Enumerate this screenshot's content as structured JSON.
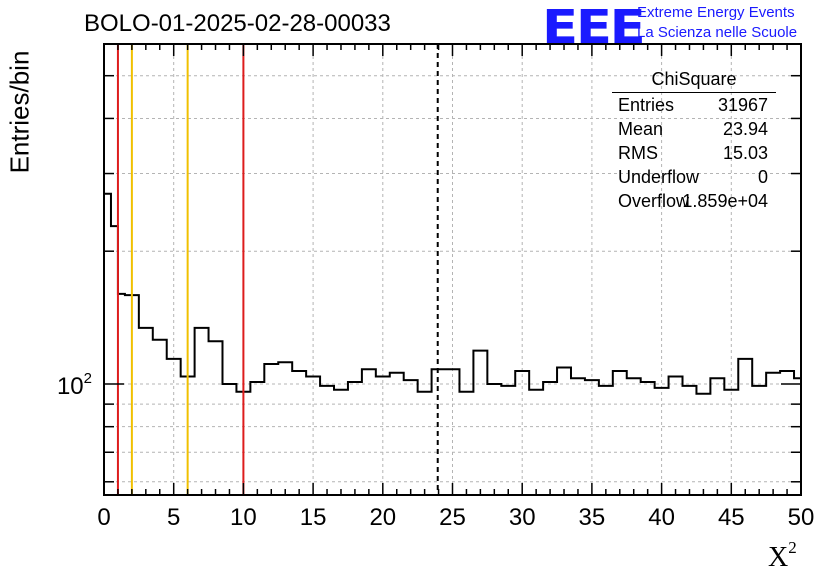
{
  "chart_data": {
    "type": "histogram",
    "title": "BOLO-01-2025-02-28-00033",
    "xlabel": "X",
    "xlabel_superscript": "2",
    "ylabel": "Entries/bin",
    "xlim": [
      0,
      50
    ],
    "ylim": [
      56,
      590
    ],
    "yscale": "log",
    "grid": true,
    "x_ticks": [
      0,
      5,
      10,
      15,
      20,
      25,
      30,
      35,
      40,
      45,
      50
    ],
    "y_ticks": [
      {
        "value": 100,
        "base": "10",
        "exp": "2"
      }
    ],
    "bin_width": 0.5,
    "bin_counts": [
      270,
      228,
      160,
      159,
      159,
      134,
      134,
      126,
      126,
      114,
      114,
      104,
      104,
      134,
      134,
      125,
      125,
      100,
      100,
      96,
      96,
      101,
      101,
      111,
      111,
      112,
      112,
      107,
      107,
      104,
      104,
      99,
      99,
      97,
      97,
      101,
      101,
      108,
      108,
      104,
      104,
      106,
      106,
      102,
      102,
      96,
      96,
      108,
      108,
      108,
      108,
      96,
      96,
      119,
      119,
      100,
      100,
      99,
      99,
      107,
      107,
      97,
      97,
      101,
      101,
      109,
      109,
      103,
      103,
      102,
      102,
      99,
      99,
      107,
      107,
      103,
      103,
      101,
      101,
      98,
      98,
      104,
      104,
      99,
      99,
      95,
      95,
      103,
      103,
      97,
      97,
      114,
      114,
      99,
      99,
      106,
      106,
      107,
      107,
      103
    ],
    "reference_lines": [
      {
        "x": 1.0,
        "color": "#dd1c1c",
        "style": "solid"
      },
      {
        "x": 2.0,
        "color": "#f0c000",
        "style": "solid"
      },
      {
        "x": 6.0,
        "color": "#f0c000",
        "style": "solid"
      },
      {
        "x": 10.0,
        "color": "#dd1c1c",
        "style": "solid"
      },
      {
        "x": 23.94,
        "color": "#000000",
        "style": "dashed"
      }
    ],
    "stats": {
      "title": "ChiSquare",
      "rows": [
        {
          "label": "Entries",
          "value": "31967"
        },
        {
          "label": "Mean",
          "value": "23.94"
        },
        {
          "label": "RMS",
          "value": "15.03"
        },
        {
          "label": "Underflow",
          "value": "0"
        },
        {
          "label": "Overflow",
          "value": "1.859e+04"
        }
      ]
    }
  },
  "logo": {
    "mark": "EEE",
    "line1": "Extreme Energy Events",
    "line2": "La Scienza nelle Scuole",
    "color": "#1a1aff"
  }
}
